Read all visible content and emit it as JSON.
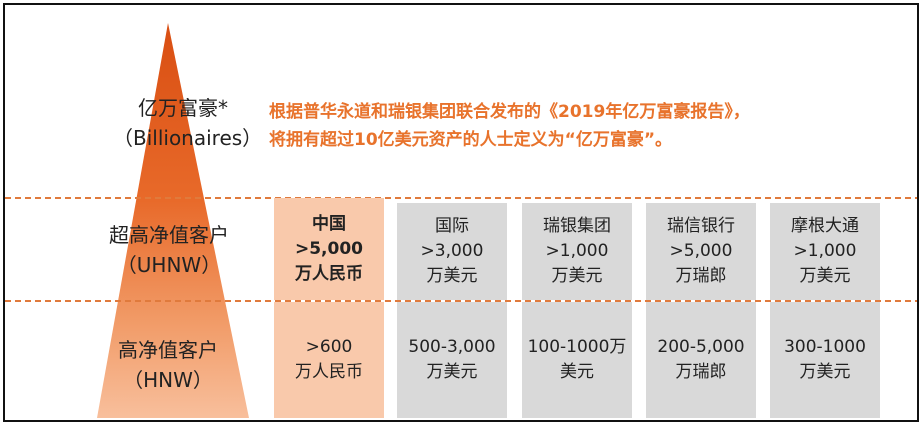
{
  "tiers": {
    "billionaires": {
      "zh": "亿万富豪*",
      "en": "（Billionaires）"
    },
    "uhnw": {
      "zh": "超高净值客户",
      "en": "（UHNW）"
    },
    "hnw": {
      "zh": "高净值客户",
      "en": "（HNW）"
    }
  },
  "note": {
    "line1": "根据普华永道和瑞银集团联合发布的《2019年亿万富豪报告》，",
    "line2": "将拥有超过10亿美元资产的人士定义为“亿万富豪”。"
  },
  "columns": [
    {
      "name": "中国",
      "uhnw_1": ">5,000",
      "uhnw_2": "万人民币",
      "hnw_1": ">600",
      "hnw_2": "万人民币"
    },
    {
      "name": "国际",
      "uhnw_1": ">3,000",
      "uhnw_2": "万美元",
      "hnw_1": "500-3,000",
      "hnw_2": "万美元"
    },
    {
      "name": "瑞银集团",
      "uhnw_1": ">1,000",
      "uhnw_2": "万美元",
      "hnw_1": "100-1000万",
      "hnw_2": "美元"
    },
    {
      "name": "瑞信银行",
      "uhnw_1": ">5,000",
      "uhnw_2": "万瑞郎",
      "hnw_1": "200-5,000",
      "hnw_2": "万瑞郎"
    },
    {
      "name": "摩根大通",
      "uhnw_1": ">1,000",
      "uhnw_2": "万美元",
      "hnw_1": "300-1000",
      "hnw_2": "万美元"
    }
  ],
  "colors": {
    "pyramid_top": "#d94e12",
    "pyramid_mid": "#ec8a52",
    "pyramid_base": "#f7b894",
    "note_text": "#e8732c",
    "china_cell": "#f9c9ab",
    "other_cell": "#d9d9d9",
    "divider": "#e07a3c"
  }
}
